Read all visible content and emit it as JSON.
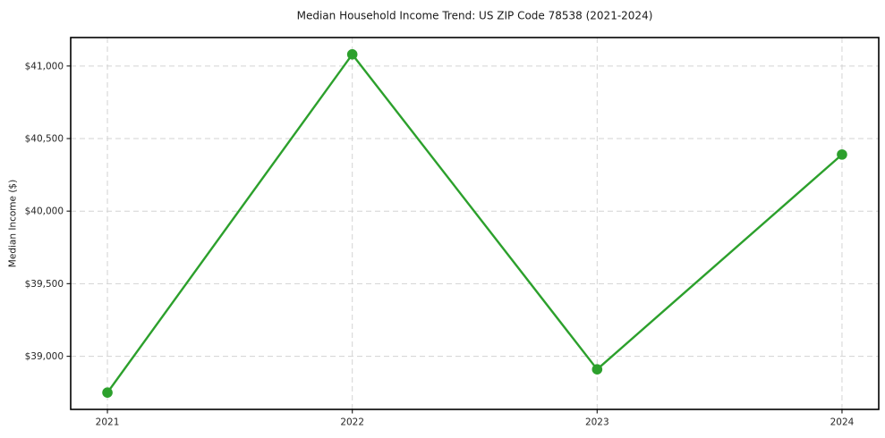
{
  "chart_data": {
    "type": "line",
    "title": "Median Household Income Trend: US ZIP Code 78538 (2021-2024)",
    "xlabel": "",
    "ylabel": "Median Income ($)",
    "x": [
      2021,
      2022,
      2023,
      2024
    ],
    "x_tick_labels": [
      "2021",
      "2022",
      "2023",
      "2024"
    ],
    "series": [
      {
        "name": "Median household income",
        "color": "#2ca02c",
        "values": [
          38750,
          41080,
          38910,
          40390
        ]
      }
    ],
    "y_ticks": [
      {
        "value": 39000,
        "label": "$39,000"
      },
      {
        "value": 39500,
        "label": "$39,500"
      },
      {
        "value": 40000,
        "label": "$40,000"
      },
      {
        "value": 40500,
        "label": "$40,500"
      },
      {
        "value": 41000,
        "label": "$41,000"
      }
    ],
    "xlim": [
      2020.85,
      2024.15
    ],
    "ylim": [
      38634,
      41196
    ],
    "grid": true,
    "grid_style": "dashed",
    "grid_color": "#d3d3d3",
    "legend_position": "none",
    "marker": "circle",
    "marker_size": 5.8,
    "line_width": 2.4,
    "background": "#ffffff",
    "spine_color": "#000000"
  }
}
